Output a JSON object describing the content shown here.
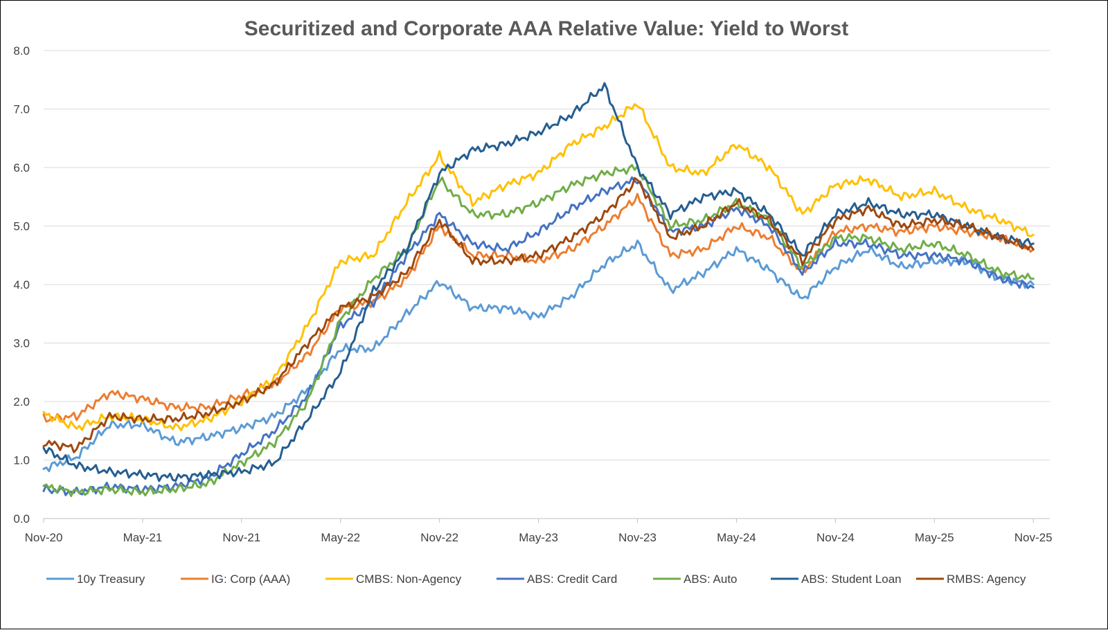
{
  "chart_data": {
    "type": "line",
    "title": "Securitized and Corporate AAA Relative Value: Yield to Worst",
    "xlabel": "",
    "ylabel": "",
    "ylim": [
      0,
      8
    ],
    "yticks": [
      "0.0",
      "1.0",
      "2.0",
      "3.0",
      "4.0",
      "5.0",
      "6.0",
      "7.0",
      "8.0"
    ],
    "xlim": [
      "2020-11-01",
      "2025-12-01"
    ],
    "xticks": [
      "Nov-20",
      "May-21",
      "Nov-21",
      "May-22",
      "Nov-22",
      "May-23",
      "Nov-23",
      "May-24",
      "Nov-24",
      "May-25",
      "Nov-25"
    ],
    "grid": "horizontal",
    "legend": "bottom",
    "dates": [
      "2020-11",
      "2021-01",
      "2021-03",
      "2021-05",
      "2021-07",
      "2021-09",
      "2021-11",
      "2022-01",
      "2022-03",
      "2022-05",
      "2022-07",
      "2022-09",
      "2022-11",
      "2023-01",
      "2023-03",
      "2023-05",
      "2023-07",
      "2023-09",
      "2023-11",
      "2024-01",
      "2024-03",
      "2024-05",
      "2024-07",
      "2024-09",
      "2024-11",
      "2025-01",
      "2025-03",
      "2025-05",
      "2025-07",
      "2025-09",
      "2025-11"
    ],
    "series": [
      {
        "name": "10y Treasury",
        "color": "#5B9BD5",
        "values": [
          0.85,
          1.05,
          1.6,
          1.6,
          1.3,
          1.4,
          1.55,
          1.75,
          2.2,
          2.9,
          2.9,
          3.5,
          4.05,
          3.6,
          3.6,
          3.45,
          3.8,
          4.35,
          4.7,
          3.9,
          4.2,
          4.6,
          4.25,
          3.75,
          4.3,
          4.6,
          4.3,
          4.4,
          4.4,
          4.1,
          4.0
        ]
      },
      {
        "name": "IG: Corp (AAA)",
        "color": "#ED7D31",
        "values": [
          1.7,
          1.75,
          2.15,
          2.05,
          1.9,
          1.9,
          2.1,
          2.3,
          2.8,
          3.6,
          3.7,
          4.1,
          5.0,
          4.5,
          4.5,
          4.4,
          4.6,
          5.0,
          5.5,
          4.5,
          4.6,
          5.0,
          4.8,
          4.2,
          4.9,
          5.0,
          4.9,
          5.0,
          4.9,
          4.8,
          4.6
        ]
      },
      {
        "name": "CMBS: Non-Agency",
        "color": "#FFC000",
        "values": [
          1.8,
          1.55,
          1.75,
          1.7,
          1.55,
          1.7,
          2.0,
          2.4,
          3.3,
          4.4,
          4.5,
          5.4,
          6.2,
          5.4,
          5.7,
          5.9,
          6.4,
          6.7,
          7.1,
          6.0,
          5.9,
          6.4,
          6.0,
          5.2,
          5.7,
          5.8,
          5.5,
          5.6,
          5.3,
          5.1,
          4.85
        ]
      },
      {
        "name": "ABS: Credit Card",
        "color": "#4472C4",
        "values": [
          0.5,
          0.45,
          0.55,
          0.5,
          0.55,
          0.7,
          1.1,
          1.5,
          2.1,
          3.3,
          3.7,
          4.5,
          5.2,
          4.7,
          4.6,
          4.9,
          5.3,
          5.6,
          5.8,
          4.9,
          5.0,
          5.3,
          5.0,
          4.2,
          4.7,
          4.7,
          4.5,
          4.5,
          4.4,
          4.1,
          3.95
        ]
      },
      {
        "name": "ABS: Auto",
        "color": "#70AD47",
        "values": [
          0.55,
          0.45,
          0.5,
          0.45,
          0.5,
          0.6,
          0.95,
          1.3,
          2.0,
          3.4,
          4.1,
          4.6,
          5.8,
          5.2,
          5.2,
          5.4,
          5.7,
          5.9,
          6.0,
          5.0,
          5.1,
          5.4,
          5.1,
          4.3,
          4.8,
          4.8,
          4.6,
          4.7,
          4.5,
          4.2,
          4.1
        ]
      },
      {
        "name": "ABS: Student Loan",
        "color": "#255E91",
        "values": [
          1.2,
          0.9,
          0.8,
          0.75,
          0.7,
          0.75,
          0.8,
          0.95,
          1.7,
          2.5,
          3.9,
          4.6,
          5.9,
          6.3,
          6.4,
          6.6,
          6.9,
          7.4,
          6.0,
          5.2,
          5.5,
          5.6,
          5.2,
          4.5,
          5.2,
          5.4,
          5.2,
          5.2,
          5.0,
          4.8,
          4.7
        ]
      },
      {
        "name": "RMBS: Agency",
        "color": "#9E480E",
        "values": [
          1.3,
          1.2,
          1.75,
          1.7,
          1.7,
          1.8,
          2.0,
          2.3,
          3.0,
          3.6,
          3.8,
          4.2,
          5.1,
          4.4,
          4.4,
          4.5,
          4.8,
          5.2,
          5.8,
          4.8,
          5.0,
          5.4,
          5.1,
          4.4,
          5.1,
          5.3,
          5.0,
          5.1,
          5.0,
          4.8,
          4.6
        ]
      }
    ]
  }
}
